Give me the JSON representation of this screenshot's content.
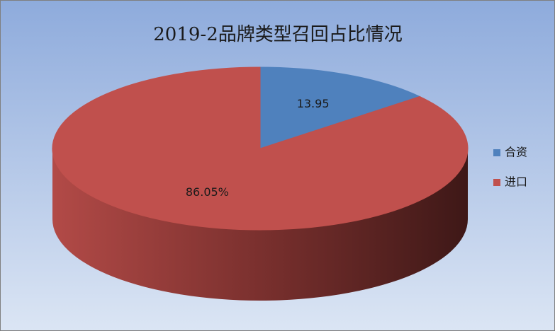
{
  "chart_data": {
    "type": "pie",
    "title": "2019-2品牌类型召回占比情况",
    "categories": [
      "合资",
      "进口"
    ],
    "values": [
      13.95,
      86.05
    ],
    "value_labels": [
      "13.95",
      "86.05%"
    ],
    "colors": [
      "#4f81bd",
      "#c0504d"
    ]
  }
}
